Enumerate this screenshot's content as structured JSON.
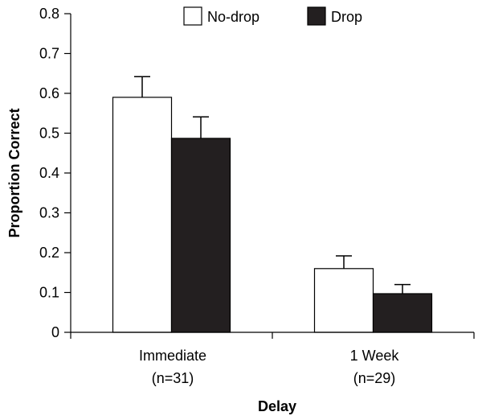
{
  "chart_data": {
    "type": "bar",
    "title": "",
    "xlabel": "Delay",
    "ylabel": "Proportion Correct",
    "ylim": [
      0,
      0.8
    ],
    "yticks": [
      "0",
      "0.1",
      "0.2",
      "0.3",
      "0.4",
      "0.5",
      "0.6",
      "0.7",
      "0.8"
    ],
    "categories": [
      {
        "line1": "Immediate",
        "line2": "(n=31)"
      },
      {
        "line1": "1 Week",
        "line2": "(n=29)"
      }
    ],
    "series": [
      {
        "name": "No-drop",
        "color": "#ffffff",
        "values": [
          0.59,
          0.16
        ],
        "errors": [
          0.052,
          0.032
        ]
      },
      {
        "name": "Drop",
        "color": "#231f20",
        "values": [
          0.487,
          0.097
        ],
        "errors": [
          0.054,
          0.023
        ]
      }
    ],
    "legend_position": "top"
  }
}
